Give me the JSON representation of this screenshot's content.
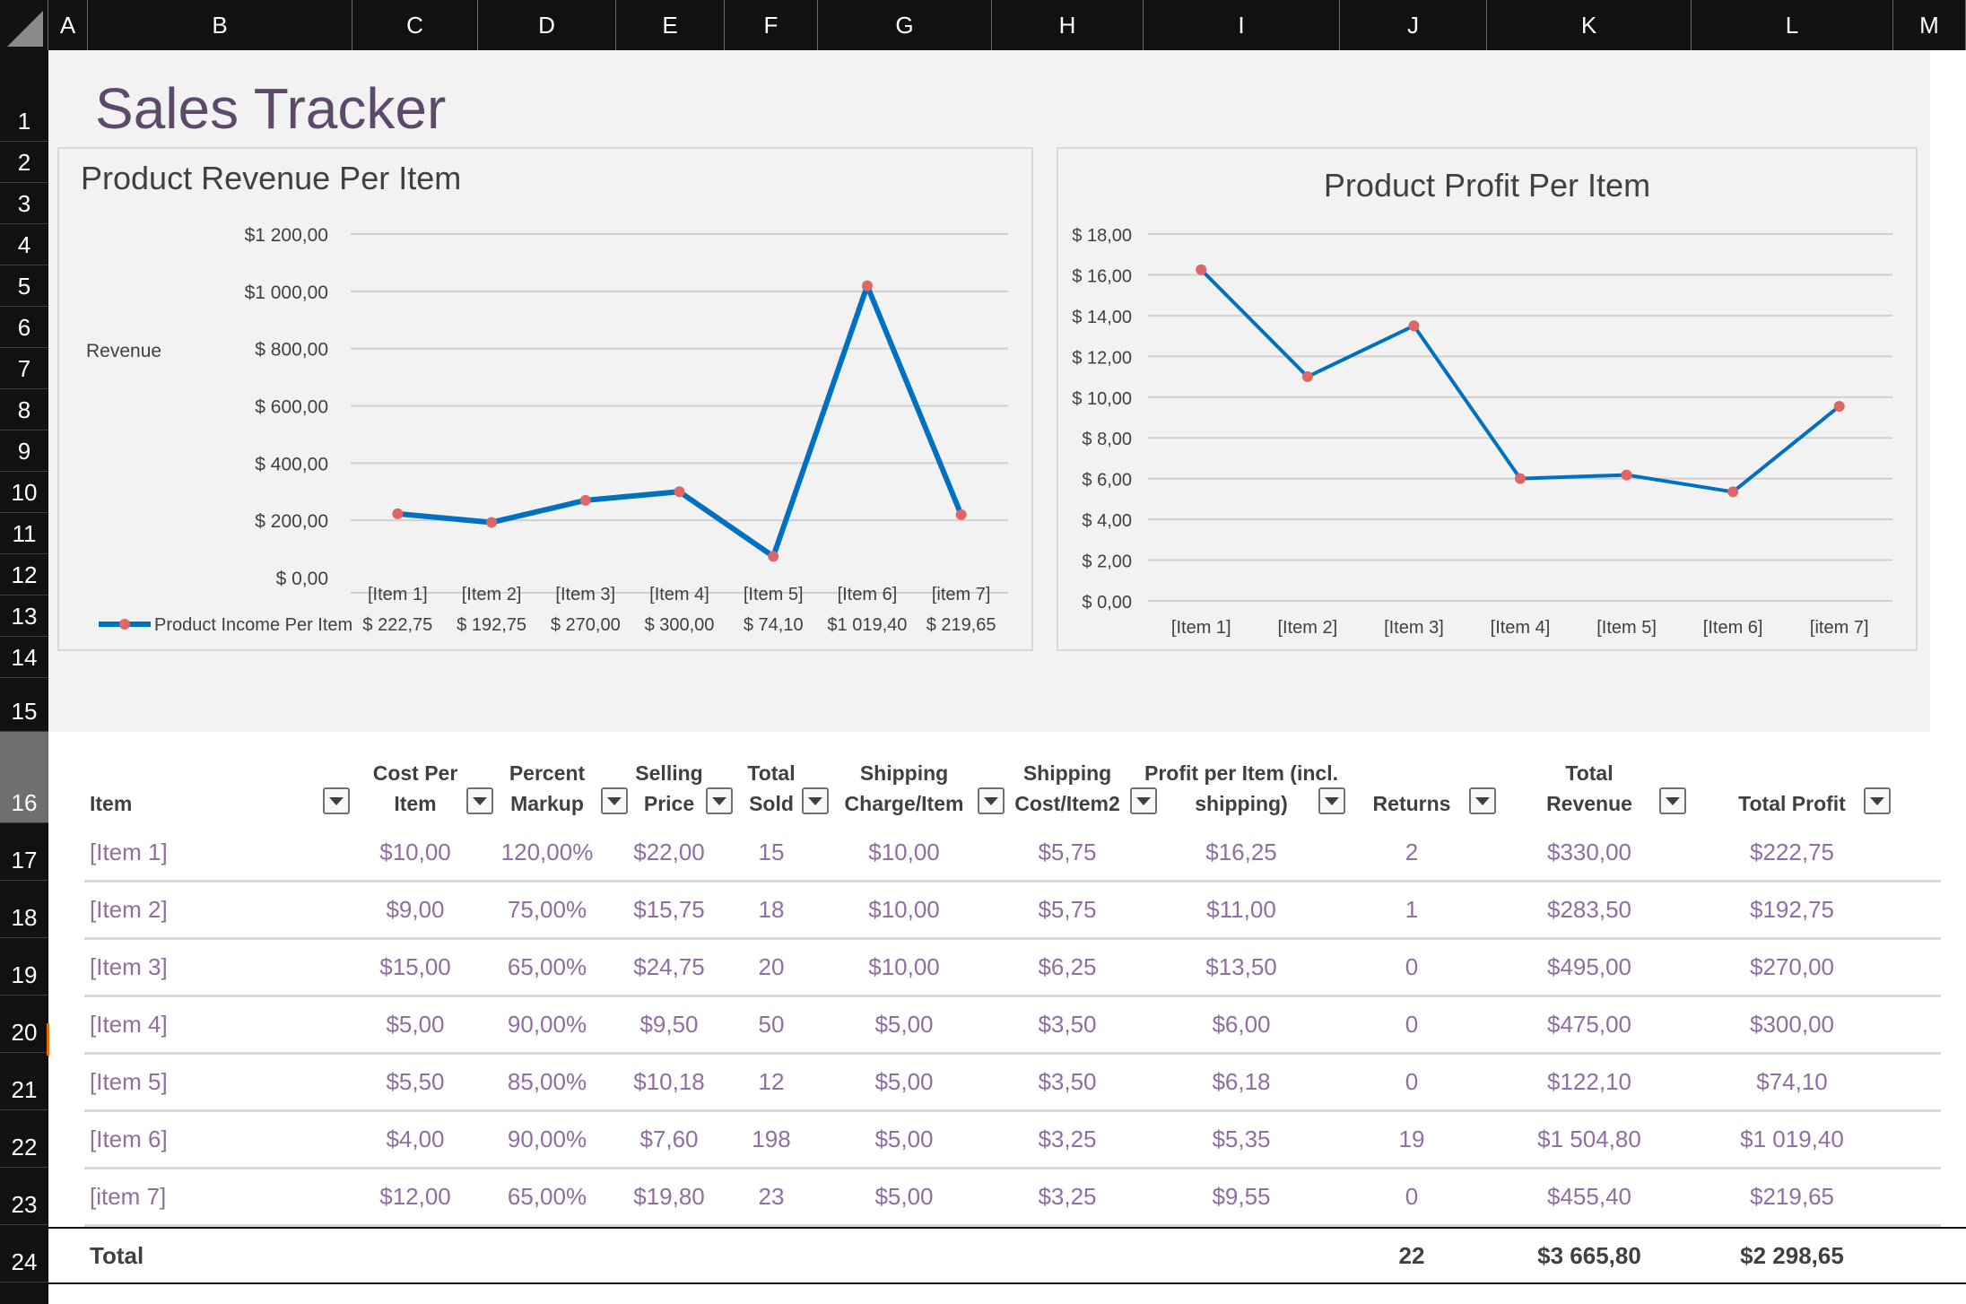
{
  "columns": [
    "A",
    "B",
    "C",
    "D",
    "E",
    "F",
    "G",
    "H",
    "I",
    "J",
    "K",
    "L",
    "M"
  ],
  "rows": [
    "1",
    "2",
    "3",
    "4",
    "5",
    "6",
    "7",
    "8",
    "9",
    "10",
    "11",
    "12",
    "13",
    "14",
    "15",
    "16",
    "17",
    "18",
    "19",
    "20",
    "21",
    "22",
    "23",
    "24"
  ],
  "sheet_title": "Sales Tracker",
  "revenue_chart": {
    "title": "Product Revenue Per Item",
    "ylabel": "Revenue",
    "y_ticks": [
      "$1 200,00",
      "$1 000,00",
      "$ 800,00",
      "$ 600,00",
      "$ 400,00",
      "$ 200,00",
      "$ 0,00"
    ],
    "legend": "Product Income Per Item",
    "table_values": [
      "$ 222,75",
      "$ 192,75",
      "$ 270,00",
      "$ 300,00",
      "$ 74,10",
      "$1 019,40",
      "$ 219,65"
    ],
    "accent": "#0070c0",
    "marker": "#e06666"
  },
  "profit_chart": {
    "title": "Product Profit Per Item",
    "y_ticks": [
      "$ 18,00",
      "$ 16,00",
      "$ 14,00",
      "$ 12,00",
      "$ 10,00",
      "$ 8,00",
      "$ 6,00",
      "$ 4,00",
      "$ 2,00",
      "$ 0,00"
    ]
  },
  "chart_data": [
    {
      "type": "line",
      "title": "Product Revenue Per Item",
      "ylabel": "Revenue",
      "categories": [
        "[Item 1]",
        "[Item 2]",
        "[Item 3]",
        "[Item 4]",
        "[Item 5]",
        "[Item 6]",
        "[item 7]"
      ],
      "series": [
        {
          "name": "Product Income Per Item",
          "values": [
            222.75,
            192.75,
            270.0,
            300.0,
            74.1,
            1019.4,
            219.65
          ]
        }
      ],
      "ylim": [
        0,
        1200
      ],
      "grid": true,
      "legend": "bottom-left"
    },
    {
      "type": "line",
      "title": "Product Profit Per Item",
      "categories": [
        "[Item 1]",
        "[Item 2]",
        "[Item 3]",
        "[Item 4]",
        "[Item 5]",
        "[Item 6]",
        "[item 7]"
      ],
      "series": [
        {
          "values": [
            16.25,
            11.0,
            13.5,
            6.0,
            6.18,
            5.35,
            9.55
          ]
        }
      ],
      "ylim": [
        0,
        18
      ],
      "grid": true
    }
  ],
  "table": {
    "headers": [
      {
        "l1": "",
        "l2": "Item"
      },
      {
        "l1": "Cost Per",
        "l2": "Item"
      },
      {
        "l1": "Percent",
        "l2": "Markup"
      },
      {
        "l1": "Selling",
        "l2": "Price"
      },
      {
        "l1": "Total",
        "l2": "Sold"
      },
      {
        "l1": "Shipping",
        "l2": "Charge/Item"
      },
      {
        "l1": "Shipping",
        "l2": "Cost/Item2"
      },
      {
        "l1": "Profit per Item (incl.",
        "l2": "shipping)"
      },
      {
        "l1": "",
        "l2": "Returns"
      },
      {
        "l1": "Total",
        "l2": "Revenue"
      },
      {
        "l1": "",
        "l2": "Total Profit"
      }
    ],
    "rows": [
      [
        "[Item 1]",
        "$10,00",
        "120,00%",
        "$22,00",
        "15",
        "$10,00",
        "$5,75",
        "$16,25",
        "2",
        "$330,00",
        "$222,75"
      ],
      [
        "[Item 2]",
        "$9,00",
        "75,00%",
        "$15,75",
        "18",
        "$10,00",
        "$5,75",
        "$11,00",
        "1",
        "$283,50",
        "$192,75"
      ],
      [
        "[Item 3]",
        "$15,00",
        "65,00%",
        "$24,75",
        "20",
        "$10,00",
        "$6,25",
        "$13,50",
        "0",
        "$495,00",
        "$270,00"
      ],
      [
        "[Item 4]",
        "$5,00",
        "90,00%",
        "$9,50",
        "50",
        "$5,00",
        "$3,50",
        "$6,00",
        "0",
        "$475,00",
        "$300,00"
      ],
      [
        "[Item 5]",
        "$5,50",
        "85,00%",
        "$10,18",
        "12",
        "$5,00",
        "$3,50",
        "$6,18",
        "0",
        "$122,10",
        "$74,10"
      ],
      [
        "[Item 6]",
        "$4,00",
        "90,00%",
        "$7,60",
        "198",
        "$5,00",
        "$3,25",
        "$5,35",
        "19",
        "$1 504,80",
        "$1 019,40"
      ],
      [
        "[item 7]",
        "$12,00",
        "65,00%",
        "$19,80",
        "23",
        "$5,00",
        "$3,25",
        "$9,55",
        "0",
        "$455,40",
        "$219,65"
      ]
    ],
    "total": {
      "label": "Total",
      "returns": "22",
      "revenue": "$3 665,80",
      "profit": "$2 298,65"
    }
  }
}
